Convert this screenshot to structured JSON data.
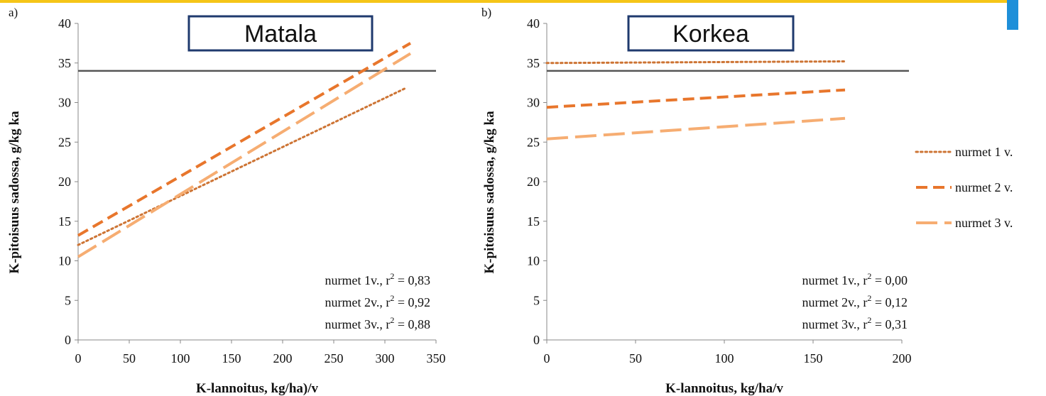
{
  "colors": {
    "series1": "#CD7434",
    "series2": "#E8762C",
    "series3": "#F6AD72",
    "reference": "#555555",
    "title_border": "#1F3A6E",
    "accent_bar": "#F5C518",
    "accent_side": "#1E8FD9"
  },
  "legend": {
    "placement": "right",
    "items": [
      {
        "label": "nurmet 1 v.",
        "style": "dotted"
      },
      {
        "label": "nurmet 2 v.",
        "style": "dashed"
      },
      {
        "label": "nurmet 3 v.",
        "style": "long-dashed"
      }
    ]
  },
  "chart_data": [
    {
      "type": "line",
      "panel": "a)",
      "title": "Matala",
      "xlabel": "K-lannoitus, kg/ha)/v",
      "ylabel": "K-pitoisuus sadossa, g/kg ka",
      "xlim": [
        0,
        350
      ],
      "ylim": [
        0,
        40
      ],
      "xticks": [
        0,
        50,
        100,
        150,
        200,
        250,
        300,
        350
      ],
      "yticks": [
        0,
        5,
        10,
        15,
        20,
        25,
        30,
        35,
        40
      ],
      "reference_line": 34,
      "series": [
        {
          "name": "nurmet 1 v.",
          "style": "dotted",
          "x": [
            0,
            320
          ],
          "y": [
            12,
            31.8
          ]
        },
        {
          "name": "nurmet 2 v.",
          "style": "dashed",
          "x": [
            0,
            325
          ],
          "y": [
            13.2,
            37.5
          ]
        },
        {
          "name": "nurmet 3 v.",
          "style": "long-dashed",
          "x": [
            0,
            325
          ],
          "y": [
            10.5,
            36.2
          ]
        }
      ],
      "annotations": [
        {
          "text": "nurmet 1v., r",
          "sup": "2",
          "rest": " = 0,83"
        },
        {
          "text": "nurmet 2v., r",
          "sup": "2",
          "rest": " = 0,92"
        },
        {
          "text": "nurmet 3v., r",
          "sup": "2",
          "rest": " = 0,88"
        }
      ]
    },
    {
      "type": "line",
      "panel": "b)",
      "title": "Korkea",
      "xlabel": "K-lannoitus, kg/ha/v",
      "ylabel": "K-pitoisuus sadossa, g/kg ka",
      "xlim": [
        0,
        200
      ],
      "ylim": [
        0,
        40
      ],
      "xticks": [
        0,
        50,
        100,
        150,
        200
      ],
      "yticks": [
        0,
        5,
        10,
        15,
        20,
        25,
        30,
        35,
        40
      ],
      "reference_line": 34,
      "series": [
        {
          "name": "nurmet 1 v.",
          "style": "dotted",
          "x": [
            0,
            168
          ],
          "y": [
            35.0,
            35.2
          ]
        },
        {
          "name": "nurmet 2 v.",
          "style": "dashed",
          "x": [
            0,
            168
          ],
          "y": [
            29.4,
            31.6
          ]
        },
        {
          "name": "nurmet 3 v.",
          "style": "long-dashed",
          "x": [
            0,
            168
          ],
          "y": [
            25.4,
            28.0
          ]
        }
      ],
      "annotations": [
        {
          "text": "nurmet 1v., r",
          "sup": "2",
          "rest": " = 0,00"
        },
        {
          "text": "nurmet 2v., r",
          "sup": "2",
          "rest": " = 0,12"
        },
        {
          "text": "nurmet 3v., r",
          "sup": "2",
          "rest": " = 0,31"
        }
      ]
    }
  ]
}
